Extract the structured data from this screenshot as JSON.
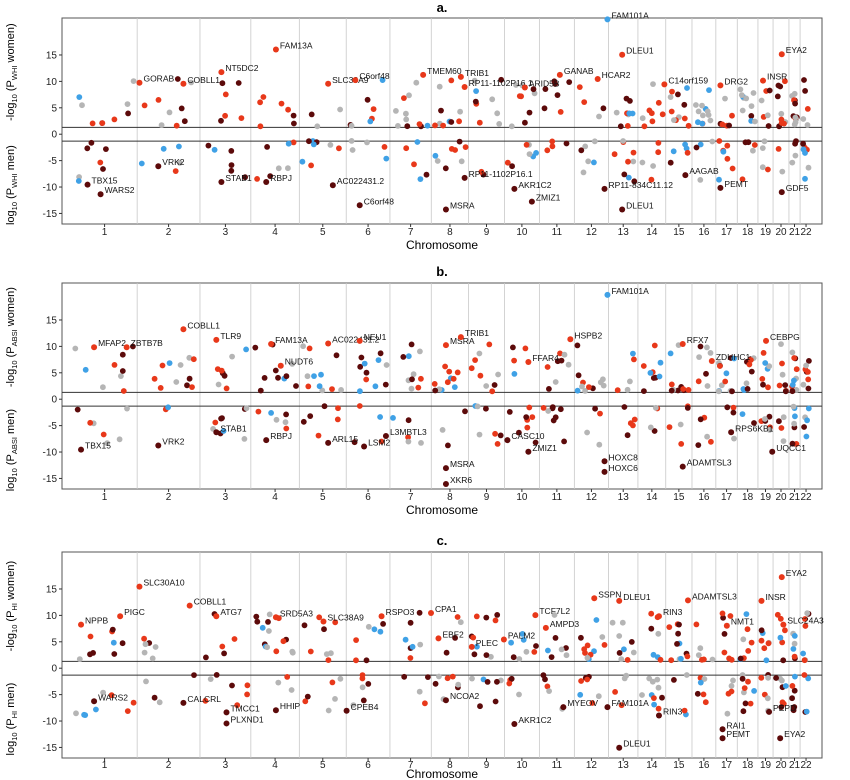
{
  "colors": {
    "dark_red": "#5c0a0a",
    "red": "#e8381a",
    "light_blue": "#3fa1e6",
    "grey": "#b5b5b5",
    "frame": "#555555"
  },
  "chart_data": [
    {
      "type": "scatter",
      "panel": "a.",
      "xlabel": "Chromosome",
      "ylabel_top": {
        "pre": "-log",
        "base": "10",
        "mid": " (P",
        "sub": "WHI",
        "post": " women)"
      },
      "ylabel_bottom": {
        "pre": "log",
        "base": "10",
        "mid": " (P",
        "sub": "WHI",
        "post": " men)"
      },
      "yticks": [
        15,
        10,
        5,
        0,
        -5,
        -10,
        -15
      ],
      "ylim": [
        -17,
        22
      ],
      "threshold": 1.3,
      "chromosomes": [
        "1",
        "2",
        "3",
        "4",
        "5",
        "6",
        "7",
        "8",
        "9",
        "10",
        "11",
        "12",
        "13",
        "14",
        "15",
        "16",
        "17",
        "18",
        "19",
        "20",
        "21",
        "22"
      ],
      "annotations": [
        {
          "label": "GORAB",
          "chr": 1.6,
          "y": 10.5
        },
        {
          "label": "COBLL1",
          "chr": 2.3,
          "y": 10.3
        },
        {
          "label": "NT5DC2",
          "chr": 3.0,
          "y": 12.5
        },
        {
          "label": "FAM13A",
          "chr": 4.1,
          "y": 16.8
        },
        {
          "label": "SLC38A9",
          "chr": 5.2,
          "y": 10.3
        },
        {
          "label": "C6orf48",
          "chr": 5.8,
          "y": 11.0
        },
        {
          "label": "TMEM60",
          "chr": 7.4,
          "y": 12.0
        },
        {
          "label": "TRIB1",
          "chr": 8.4,
          "y": 11.6
        },
        {
          "label": "RP11-1102P16.1",
          "chr": 8.5,
          "y": 9.7
        },
        {
          "label": "ARID5B",
          "chr": 10.2,
          "y": 9.6
        },
        {
          "label": "GANAB",
          "chr": 11.2,
          "y": 12.0
        },
        {
          "label": "HCAR2",
          "chr": 12.3,
          "y": 11.2
        },
        {
          "label": "FAM101A",
          "chr": 12.6,
          "y": 22.5
        },
        {
          "label": "DLEU1",
          "chr": 13.1,
          "y": 15.8
        },
        {
          "label": "C14orf159",
          "chr": 14.6,
          "y": 10.2
        },
        {
          "label": "DRG2",
          "chr": 16.9,
          "y": 10.0
        },
        {
          "label": "INSR",
          "chr": 19.1,
          "y": 10.9
        },
        {
          "label": "EYA2",
          "chr": 20.3,
          "y": 15.9
        },
        {
          "label": "TBX15",
          "chr": 0.8,
          "y": -8.8
        },
        {
          "label": "WARS2",
          "chr": 1.0,
          "y": -10.6
        },
        {
          "label": "VRK2",
          "chr": 1.9,
          "y": -5.3
        },
        {
          "label": "STAB1",
          "chr": 3.0,
          "y": -8.3
        },
        {
          "label": "RBPJ",
          "chr": 3.9,
          "y": -8.3
        },
        {
          "label": "AC022431.2",
          "chr": 5.3,
          "y": -8.9
        },
        {
          "label": "C6orf48",
          "chr": 5.9,
          "y": -12.7
        },
        {
          "label": "MSRA",
          "chr": 8.0,
          "y": -13.5
        },
        {
          "label": "RP11-1102P16.1",
          "chr": 8.5,
          "y": -7.5
        },
        {
          "label": "AKR1C2",
          "chr": 9.9,
          "y": -9.6
        },
        {
          "label": "ZMIZ1",
          "chr": 10.4,
          "y": -12.0
        },
        {
          "label": "RP11-834C11.12",
          "chr": 12.5,
          "y": -9.6
        },
        {
          "label": "DLEU1",
          "chr": 13.1,
          "y": -13.5
        },
        {
          "label": "AAGAB",
          "chr": 15.4,
          "y": -7.0
        },
        {
          "label": "PEMT",
          "chr": 16.9,
          "y": -9.4
        },
        {
          "label": "GDF5",
          "chr": 20.3,
          "y": -10.2
        }
      ]
    },
    {
      "type": "scatter",
      "panel": "b.",
      "xlabel": "Chromosome",
      "ylabel_top": {
        "pre": "-log",
        "base": "10",
        "mid": " (P",
        "sub": "ABSI",
        "post": " women)"
      },
      "ylabel_bottom": {
        "pre": "log",
        "base": "10",
        "mid": " (P",
        "sub": "ABSI",
        "post": " men)"
      },
      "yticks": [
        15,
        10,
        5,
        0,
        -5,
        -10,
        -15
      ],
      "ylim": [
        -17,
        22
      ],
      "threshold": 1.3,
      "chromosomes": [
        "1",
        "2",
        "3",
        "4",
        "5",
        "6",
        "7",
        "8",
        "9",
        "10",
        "11",
        "12",
        "13",
        "14",
        "15",
        "16",
        "17",
        "18",
        "19",
        "20",
        "21",
        "22"
      ],
      "annotations": [
        {
          "label": "MFAP2",
          "chr": 0.9,
          "y": 10.6
        },
        {
          "label": "ZBTB7B",
          "chr": 1.4,
          "y": 10.6
        },
        {
          "label": "COBLL1",
          "chr": 2.3,
          "y": 14.0
        },
        {
          "label": "TLR9",
          "chr": 2.9,
          "y": 12.0
        },
        {
          "label": "FAM13A",
          "chr": 4.0,
          "y": 11.2
        },
        {
          "label": "AC022431.2",
          "chr": 5.2,
          "y": 11.3
        },
        {
          "label": "NEU1",
          "chr": 5.9,
          "y": 11.8
        },
        {
          "label": "NUDT6",
          "chr": 4.2,
          "y": 7.1
        },
        {
          "label": "MSRA",
          "chr": 8.0,
          "y": 11.0
        },
        {
          "label": "TRIB1",
          "chr": 8.4,
          "y": 12.5
        },
        {
          "label": "FFAR4",
          "chr": 10.3,
          "y": 7.8
        },
        {
          "label": "HSPB2",
          "chr": 11.5,
          "y": 12.1
        },
        {
          "label": "FAM101A",
          "chr": 12.6,
          "y": 20.5
        },
        {
          "label": "RFX7",
          "chr": 15.3,
          "y": 11.2
        },
        {
          "label": "ZDHHC1",
          "chr": 16.5,
          "y": 8.0
        },
        {
          "label": "CEBPG",
          "chr": 19.3,
          "y": 11.8
        },
        {
          "label": "TBX15",
          "chr": 0.7,
          "y": -8.8
        },
        {
          "label": "VRK2",
          "chr": 1.9,
          "y": -8.0
        },
        {
          "label": "STAB1",
          "chr": 2.9,
          "y": -5.5
        },
        {
          "label": "RBPJ",
          "chr": 3.9,
          "y": -7.0
        },
        {
          "label": "ARL15",
          "chr": 5.2,
          "y": -7.5
        },
        {
          "label": "LSM2",
          "chr": 6.0,
          "y": -8.2
        },
        {
          "label": "L3MBTL3",
          "chr": 6.5,
          "y": -6.2
        },
        {
          "label": "MSRA",
          "chr": 8.0,
          "y": -12.3
        },
        {
          "label": "XKR6",
          "chr": 8.0,
          "y": -15.3
        },
        {
          "label": "CASC10",
          "chr": 9.7,
          "y": -7.0
        },
        {
          "label": "ZMIZ1",
          "chr": 10.3,
          "y": -9.2
        },
        {
          "label": "HOXC8",
          "chr": 12.5,
          "y": -11.0
        },
        {
          "label": "HOXC6",
          "chr": 12.5,
          "y": -13.0
        },
        {
          "label": "ADAMTSL3",
          "chr": 15.3,
          "y": -12.0
        },
        {
          "label": "RPS6KB1",
          "chr": 17.4,
          "y": -5.5
        },
        {
          "label": "UQCC1",
          "chr": 19.7,
          "y": -9.2
        }
      ]
    },
    {
      "type": "scatter",
      "panel": "c.",
      "xlabel": "Chromosome",
      "ylabel_top": {
        "pre": "-log",
        "base": "10",
        "mid": " (P",
        "sub": "HI",
        "post": " women)"
      },
      "ylabel_bottom": {
        "pre": "log",
        "base": "10",
        "mid": " (P",
        "sub": "HI",
        "post": " men)"
      },
      "yticks": [
        15,
        10,
        5,
        0,
        -5,
        -10,
        -15
      ],
      "ylim": [
        -17,
        22
      ],
      "threshold": 1.3,
      "chromosomes": [
        "1",
        "2",
        "3",
        "4",
        "5",
        "6",
        "7",
        "8",
        "9",
        "10",
        "11",
        "12",
        "13",
        "14",
        "15",
        "16",
        "17",
        "18",
        "19",
        "20",
        "21",
        "22"
      ],
      "annotations": [
        {
          "label": "NPPB",
          "chr": 0.7,
          "y": 9.0
        },
        {
          "label": "PIGC",
          "chr": 1.3,
          "y": 10.6
        },
        {
          "label": "SLC30A10",
          "chr": 1.6,
          "y": 16.2
        },
        {
          "label": "COBLL1",
          "chr": 2.4,
          "y": 12.6
        },
        {
          "label": "ATG7",
          "chr": 2.9,
          "y": 10.6
        },
        {
          "label": "SRD5A3",
          "chr": 4.1,
          "y": 10.4
        },
        {
          "label": "SLC38A9",
          "chr": 5.1,
          "y": 9.6
        },
        {
          "label": "RSPO3",
          "chr": 6.4,
          "y": 10.6
        },
        {
          "label": "CPA1",
          "chr": 7.6,
          "y": 11.2
        },
        {
          "label": "EBF2",
          "chr": 7.8,
          "y": 6.4
        },
        {
          "label": "PLEC",
          "chr": 8.7,
          "y": 4.8
        },
        {
          "label": "PALM2",
          "chr": 9.6,
          "y": 6.2
        },
        {
          "label": "TCF7L2",
          "chr": 10.5,
          "y": 10.8
        },
        {
          "label": "AMPD3",
          "chr": 10.8,
          "y": 8.4
        },
        {
          "label": "SSPN",
          "chr": 12.2,
          "y": 14.0
        },
        {
          "label": "DLEU1",
          "chr": 13.0,
          "y": 13.5
        },
        {
          "label": "RIN3",
          "chr": 14.4,
          "y": 10.6
        },
        {
          "label": "ADAMTSL3",
          "chr": 15.5,
          "y": 13.6
        },
        {
          "label": "NMT1",
          "chr": 17.2,
          "y": 8.8
        },
        {
          "label": "INSR",
          "chr": 19.0,
          "y": 13.5
        },
        {
          "label": "EYA2",
          "chr": 20.3,
          "y": 18.0
        },
        {
          "label": "SLC24A3",
          "chr": 20.4,
          "y": 9.0
        },
        {
          "label": "WARS2",
          "chr": 0.9,
          "y": -5.5
        },
        {
          "label": "CALCRL",
          "chr": 2.3,
          "y": -5.8
        },
        {
          "label": "TMCC1",
          "chr": 3.1,
          "y": -7.6
        },
        {
          "label": "PLXND1",
          "chr": 3.1,
          "y": -9.7
        },
        {
          "label": "HHIP",
          "chr": 4.1,
          "y": -7.2
        },
        {
          "label": "CPEB4",
          "chr": 5.6,
          "y": -7.3
        },
        {
          "label": "NCOA2",
          "chr": 8.0,
          "y": -5.3
        },
        {
          "label": "AKR1C2",
          "chr": 9.9,
          "y": -9.8
        },
        {
          "label": "MYEOV",
          "chr": 11.3,
          "y": -6.6
        },
        {
          "label": "FAM101A",
          "chr": 12.6,
          "y": -6.6
        },
        {
          "label": "DLEU1",
          "chr": 13.0,
          "y": -14.3
        },
        {
          "label": "RIN3",
          "chr": 14.4,
          "y": -8.2
        },
        {
          "label": "RAI1",
          "chr": 17.0,
          "y": -10.8
        },
        {
          "label": "PEMT",
          "chr": 17.0,
          "y": -12.5
        },
        {
          "label": "PEPD",
          "chr": 19.5,
          "y": -7.5
        },
        {
          "label": "EYA2",
          "chr": 20.2,
          "y": -12.5
        }
      ]
    }
  ]
}
